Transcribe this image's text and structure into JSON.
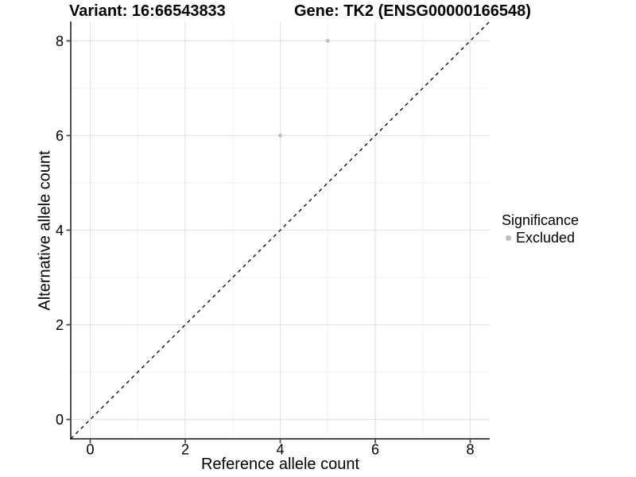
{
  "header": {
    "variant_title": "Variant: 16:66543833",
    "gene_title": "Gene: TK2 (ENSG00000166548)"
  },
  "chart_data": {
    "type": "scatter",
    "xlabel": "Reference allele count",
    "ylabel": "Alternative allele count",
    "xlim": [
      -0.41,
      8.41
    ],
    "ylim": [
      -0.41,
      8.41
    ],
    "xticks": [
      0,
      2,
      4,
      6,
      8
    ],
    "yticks": [
      0,
      2,
      4,
      6,
      8
    ],
    "minor_xticks": [
      1,
      3,
      5,
      7
    ],
    "minor_yticks": [
      1,
      3,
      5,
      7
    ],
    "grid": "major+minor",
    "series": [
      {
        "name": "Excluded",
        "color": "#bdbdbd",
        "marker": "circle",
        "points": [
          [
            4,
            6
          ],
          [
            5,
            8
          ]
        ]
      }
    ],
    "reference_line": {
      "type": "identity",
      "slope": 1,
      "intercept": 0,
      "style": "dashed",
      "color": "#000000"
    },
    "legend": {
      "title": "Significance",
      "position": "right",
      "entries": [
        {
          "label": "Excluded",
          "color": "#bdbdbd",
          "marker": "circle"
        }
      ]
    },
    "colors": {
      "background": "#ffffff",
      "grid_major": "#e3e3e3",
      "grid_minor": "#f0f0f0",
      "axis_line": "#4d4d4d",
      "tick_mark": "#4d4d4d",
      "text": "#000000",
      "point": "#bdbdbd"
    }
  }
}
